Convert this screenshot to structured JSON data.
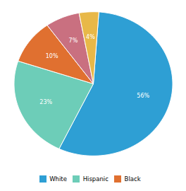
{
  "chart_data": {
    "type": "pie",
    "categories": [
      "White",
      "Hispanic",
      "Black",
      null,
      null
    ],
    "values": [
      56,
      23,
      10,
      7,
      4
    ],
    "value_labels": [
      "56%",
      "23%",
      "10%",
      "7%",
      "4%"
    ],
    "colors": [
      "#2E9FD4",
      "#6DCDB8",
      "#E07030",
      "#C97080",
      "#E8B848"
    ],
    "data_labels": true
  }
}
